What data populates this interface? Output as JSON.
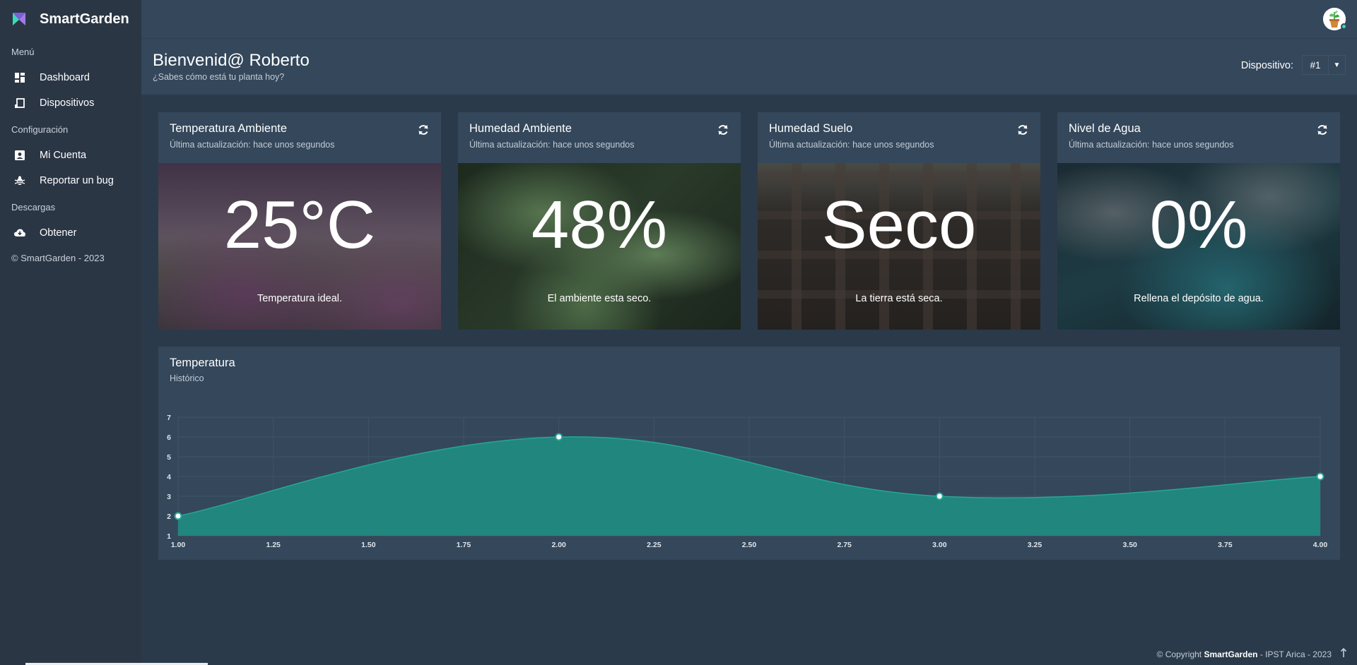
{
  "sidebar": {
    "brand": "SmartGarden",
    "sections": [
      {
        "label": "Menú",
        "items": [
          {
            "label": "Dashboard",
            "icon": "dashboard-icon"
          },
          {
            "label": "Dispositivos",
            "icon": "cast-icon"
          }
        ]
      },
      {
        "label": "Configuración",
        "items": [
          {
            "label": "Mi Cuenta",
            "icon": "account-box-icon"
          },
          {
            "label": "Reportar un bug",
            "icon": "bug-icon"
          }
        ]
      },
      {
        "label": "Descargas",
        "items": [
          {
            "label": "Obtener",
            "icon": "cloud-download-icon"
          }
        ]
      }
    ],
    "copyright": "© SmartGarden - 2023"
  },
  "header": {
    "title": "Bienvenid@ Roberto",
    "subtitle": "¿Sabes cómo está tu planta hoy?",
    "device_label": "Dispositivo:",
    "device_value": "#1"
  },
  "cards": [
    {
      "title": "Temperatura Ambiente",
      "updated": "Última actualización: hace unos segundos",
      "value": "25°C",
      "message": "Temperatura ideal."
    },
    {
      "title": "Humedad Ambiente",
      "updated": "Última actualización: hace unos segundos",
      "value": "48%",
      "message": "El ambiente esta seco."
    },
    {
      "title": "Humedad Suelo",
      "updated": "Última actualización: hace unos segundos",
      "value": "Seco",
      "message": "La tierra está seca."
    },
    {
      "title": "Nivel de Agua",
      "updated": "Última actualización: hace unos segundos",
      "value": "0%",
      "message": "Rellena el depósito de agua."
    }
  ],
  "chart": {
    "title": "Temperatura",
    "subtitle": "Histórico"
  },
  "chart_data": {
    "type": "area",
    "x": [
      1,
      2,
      3,
      4
    ],
    "values": [
      2,
      6,
      3,
      4
    ],
    "xlim": [
      1,
      4
    ],
    "ylim": [
      1,
      7
    ],
    "x_ticks": [
      "1.00",
      "1.25",
      "1.50",
      "1.75",
      "2.00",
      "2.25",
      "2.50",
      "2.75",
      "3.00",
      "3.25",
      "3.50",
      "3.75",
      "4.00"
    ],
    "y_ticks": [
      "1",
      "2",
      "3",
      "4",
      "5",
      "6",
      "7"
    ],
    "grid": true,
    "fill_color": "#218a80",
    "line_color": "#26a69a"
  },
  "footer": {
    "prefix": "© Copyright ",
    "brand": "SmartGarden",
    "suffix": " - IPST Arica - 2023"
  },
  "colors": {
    "sidebar": "#2b3645",
    "panel": "#34475b",
    "background": "#2b3a4a",
    "accent": "#26a69a"
  }
}
